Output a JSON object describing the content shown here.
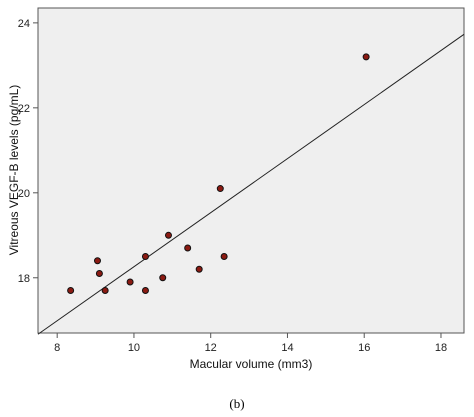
{
  "caption": "(b)",
  "colors": {
    "plot_background": "#efefef",
    "frame": "#555555",
    "marker_fill": "#8b1a12",
    "marker_stroke": "#111111",
    "fit_line": "#222222",
    "page_background": "#ffffff"
  },
  "chart_data": {
    "type": "scatter",
    "title": "",
    "xlabel": "Macular volume (mm3)",
    "ylabel": "Vitreous VEGF-B levels (pg/mL)",
    "xlim": [
      7.5,
      18.6
    ],
    "ylim": [
      16.7,
      24.35
    ],
    "x_ticks": [
      8,
      10,
      12,
      14,
      16,
      18
    ],
    "y_ticks": [
      18,
      20,
      22,
      24
    ],
    "grid": false,
    "legend": "none",
    "points": [
      {
        "x": 8.35,
        "y": 17.7
      },
      {
        "x": 9.05,
        "y": 18.4
      },
      {
        "x": 9.1,
        "y": 18.1
      },
      {
        "x": 9.25,
        "y": 17.7
      },
      {
        "x": 9.9,
        "y": 17.9
      },
      {
        "x": 10.3,
        "y": 18.5
      },
      {
        "x": 10.3,
        "y": 17.7
      },
      {
        "x": 10.75,
        "y": 18.0
      },
      {
        "x": 10.9,
        "y": 19.0
      },
      {
        "x": 11.4,
        "y": 18.7
      },
      {
        "x": 11.7,
        "y": 18.2
      },
      {
        "x": 12.25,
        "y": 20.1
      },
      {
        "x": 12.35,
        "y": 18.5
      },
      {
        "x": 16.05,
        "y": 23.2
      }
    ],
    "fit_line": {
      "x": [
        7.5,
        18.6
      ],
      "y": [
        16.67,
        23.73
      ]
    }
  }
}
